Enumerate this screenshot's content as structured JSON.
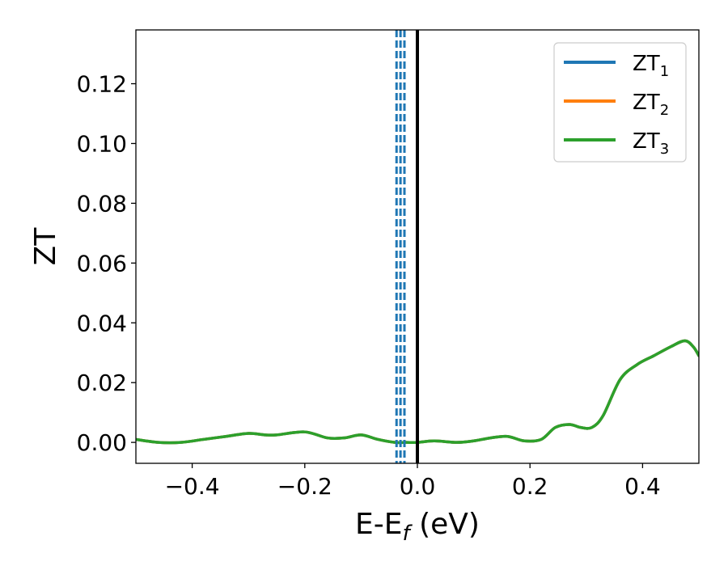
{
  "chart_data": {
    "type": "line",
    "xlabel": "E-E",
    "xlabel_sub": "f",
    "xlabel_unit": " (eV)",
    "ylabel": "ZT",
    "xlim": [
      -0.5,
      0.5
    ],
    "ylim": [
      -0.007,
      0.138
    ],
    "xticks": [
      -0.4,
      -0.2,
      0.0,
      0.2,
      0.4
    ],
    "xtick_labels": [
      "−0.4",
      "−0.2",
      "0.0",
      "0.2",
      "0.4"
    ],
    "yticks": [
      0.0,
      0.02,
      0.04,
      0.06,
      0.08,
      0.1,
      0.12
    ],
    "ytick_labels": [
      "0.00",
      "0.02",
      "0.04",
      "0.06",
      "0.08",
      "0.10",
      "0.12"
    ],
    "grid": false,
    "legend_position": "top-right",
    "series": [
      {
        "name": "ZT",
        "name_sub": "1",
        "color": "#1f77b4",
        "x": [
          -0.5,
          -0.46,
          -0.42,
          -0.38,
          -0.34,
          -0.3,
          -0.27,
          -0.25,
          -0.2,
          -0.16,
          -0.13,
          -0.1,
          -0.07,
          -0.04,
          -0.02,
          0.0,
          0.03,
          0.07,
          0.1,
          0.13,
          0.16,
          0.19,
          0.22,
          0.245,
          0.27,
          0.29,
          0.31,
          0.33,
          0.36,
          0.39,
          0.42,
          0.45,
          0.475,
          0.49,
          0.5
        ],
        "y": [
          0.001,
          0.0,
          0.0,
          0.001,
          0.002,
          0.003,
          0.0025,
          0.0025,
          0.0035,
          0.0015,
          0.0015,
          0.0025,
          0.001,
          0.0,
          0.0,
          0.0,
          0.0005,
          0.0,
          0.0005,
          0.0015,
          0.002,
          0.0005,
          0.001,
          0.005,
          0.006,
          0.005,
          0.005,
          0.009,
          0.021,
          0.026,
          0.029,
          0.032,
          0.034,
          0.032,
          0.029
        ]
      },
      {
        "name": "ZT",
        "name_sub": "2",
        "color": "#ff7f0e",
        "x": [
          -0.5,
          -0.46,
          -0.42,
          -0.38,
          -0.34,
          -0.3,
          -0.27,
          -0.25,
          -0.2,
          -0.16,
          -0.13,
          -0.1,
          -0.07,
          -0.04,
          -0.02,
          0.0,
          0.03,
          0.07,
          0.1,
          0.13,
          0.16,
          0.19,
          0.22,
          0.245,
          0.27,
          0.29,
          0.31,
          0.33,
          0.36,
          0.39,
          0.42,
          0.45,
          0.475,
          0.49,
          0.5
        ],
        "y": [
          0.001,
          0.0,
          0.0,
          0.001,
          0.002,
          0.003,
          0.0025,
          0.0025,
          0.0035,
          0.0015,
          0.0015,
          0.0025,
          0.001,
          0.0,
          0.0,
          0.0,
          0.0005,
          0.0,
          0.0005,
          0.0015,
          0.002,
          0.0005,
          0.001,
          0.005,
          0.006,
          0.005,
          0.005,
          0.009,
          0.021,
          0.026,
          0.029,
          0.032,
          0.034,
          0.032,
          0.029
        ]
      },
      {
        "name": "ZT",
        "name_sub": "3",
        "color": "#2ca02c",
        "x": [
          -0.5,
          -0.46,
          -0.42,
          -0.38,
          -0.34,
          -0.3,
          -0.27,
          -0.25,
          -0.2,
          -0.16,
          -0.13,
          -0.1,
          -0.07,
          -0.04,
          -0.02,
          0.0,
          0.03,
          0.07,
          0.1,
          0.13,
          0.16,
          0.19,
          0.22,
          0.245,
          0.27,
          0.29,
          0.31,
          0.33,
          0.36,
          0.39,
          0.42,
          0.45,
          0.475,
          0.49,
          0.5
        ],
        "y": [
          0.001,
          0.0,
          0.0,
          0.001,
          0.002,
          0.003,
          0.0025,
          0.0025,
          0.0035,
          0.0015,
          0.0015,
          0.0025,
          0.001,
          0.0,
          0.0,
          0.0,
          0.0005,
          0.0,
          0.0005,
          0.0015,
          0.002,
          0.0005,
          0.001,
          0.005,
          0.006,
          0.005,
          0.005,
          0.009,
          0.021,
          0.026,
          0.029,
          0.032,
          0.034,
          0.032,
          0.029
        ]
      }
    ],
    "vlines": [
      {
        "x": 0.0,
        "color": "#000000",
        "style": "solid"
      },
      {
        "x": -0.037,
        "color": "#1f77b4",
        "style": "dashed"
      },
      {
        "x": -0.03,
        "color": "#1f77b4",
        "style": "dashed"
      },
      {
        "x": -0.023,
        "color": "#1f77b4",
        "style": "dashed"
      }
    ]
  }
}
